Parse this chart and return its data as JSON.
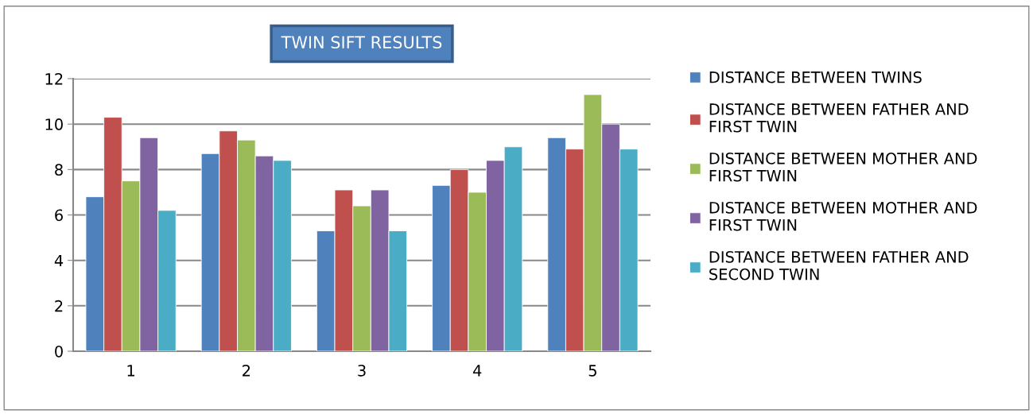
{
  "chart_data": {
    "type": "bar",
    "title": "TWIN SIFT RESULTS",
    "categories": [
      "1",
      "2",
      "3",
      "4",
      "5"
    ],
    "series": [
      {
        "name": "DISTANCE BETWEEN TWINS",
        "color": "#4f81bd",
        "values": [
          6.8,
          8.7,
          5.3,
          7.3,
          9.4
        ]
      },
      {
        "name": "DISTANCE BETWEEN FATHER AND FIRST TWIN",
        "color": "#c0504d",
        "values": [
          10.3,
          9.7,
          7.1,
          8.0,
          8.9
        ]
      },
      {
        "name": "DISTANCE BETWEEN MOTHER AND FIRST TWIN",
        "color": "#9bbb59",
        "values": [
          7.5,
          9.3,
          6.4,
          7.0,
          11.3
        ]
      },
      {
        "name": "DISTANCE BETWEEN MOTHER AND FIRST TWIN",
        "color": "#8064a2",
        "values": [
          9.4,
          8.6,
          7.1,
          8.4,
          10.0
        ]
      },
      {
        "name": "DISTANCE BETWEEN FATHER AND SECOND TWIN",
        "color": "#4bacc6",
        "values": [
          6.2,
          8.4,
          5.3,
          9.0,
          8.9
        ]
      }
    ],
    "ylim": [
      0,
      12
    ],
    "yticks": [
      0,
      2,
      4,
      6,
      8,
      10,
      12
    ],
    "grid": "y",
    "legend": "right"
  }
}
